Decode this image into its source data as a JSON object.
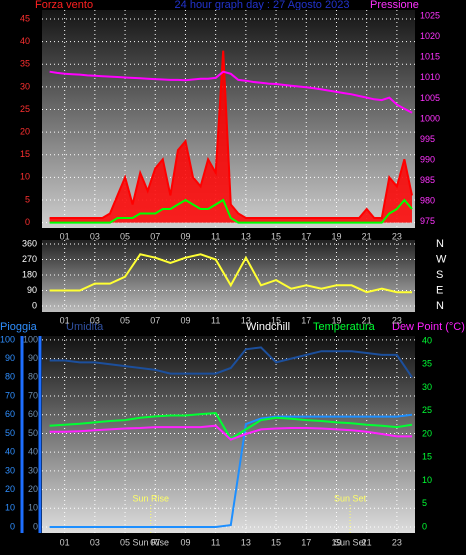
{
  "chart_data": [
    {
      "type": "line",
      "title": "24 hour graph day : 27 Agosto 2023",
      "y_label": "Forza vento",
      "y2_label": "Pressione",
      "x": [
        0,
        0.5,
        1,
        1.5,
        2,
        2.5,
        3,
        3.5,
        4,
        4.5,
        5,
        5.5,
        6,
        6.5,
        7,
        7.5,
        8,
        8.5,
        9,
        9.5,
        10,
        10.5,
        11,
        11.5,
        12,
        12.5,
        13,
        13.5,
        14,
        14.5,
        15,
        15.5,
        16,
        16.5,
        17,
        17.5,
        18,
        18.5,
        19,
        19.5,
        20,
        20.5,
        21,
        21.5,
        22,
        22.5,
        23,
        23.5,
        24
      ],
      "xlim": [
        -0.5,
        24.2
      ],
      "xticks": [
        {
          "value": 1,
          "label": "01"
        },
        {
          "value": 3,
          "label": "03"
        },
        {
          "value": 5,
          "label": "05"
        },
        {
          "value": 7,
          "label": "07"
        },
        {
          "value": 9,
          "label": "09"
        },
        {
          "value": 11,
          "label": "11"
        },
        {
          "value": 13,
          "label": "13"
        },
        {
          "value": 15,
          "label": "15"
        },
        {
          "value": 17,
          "label": "17"
        },
        {
          "value": 19,
          "label": "19"
        },
        {
          "value": 21,
          "label": "21"
        },
        {
          "value": 23,
          "label": "23"
        }
      ],
      "ylim": [
        -1.2,
        47
      ],
      "yticks": [
        0,
        5,
        10,
        15,
        20,
        25,
        30,
        35,
        40,
        45
      ],
      "y2lim": [
        973.5,
        1026.5
      ],
      "y2ticks": [
        975,
        980,
        985,
        990,
        995,
        1000,
        1005,
        1010,
        1015,
        1020,
        1025
      ],
      "grid": true,
      "series": [
        {
          "color": "#ff0000",
          "area": true,
          "values": [
            1,
            1,
            1,
            1,
            1,
            1,
            1,
            1,
            2,
            6,
            10,
            4,
            11,
            7,
            12,
            14,
            6,
            16,
            18,
            10,
            8,
            14,
            11,
            38,
            4,
            2,
            1,
            1,
            1,
            1,
            1,
            1,
            1,
            1,
            1,
            1,
            1,
            1,
            1,
            1,
            1,
            1,
            3,
            1,
            1,
            10,
            8,
            14,
            6
          ]
        },
        {
          "color": "#00ff00",
          "values": [
            0,
            0,
            0,
            0,
            0,
            0,
            0,
            0,
            0,
            1,
            1,
            1,
            2,
            2,
            2,
            3,
            3,
            4,
            5,
            4,
            3,
            3,
            4,
            5,
            1,
            0,
            0,
            0,
            0,
            0,
            0,
            0,
            0,
            0,
            0,
            0,
            0,
            0,
            0,
            0,
            0,
            0,
            0,
            0,
            0,
            2,
            3,
            5,
            3
          ]
        },
        {
          "color": "#ff00ff",
          "axis": "y2",
          "values": [
            1011.5,
            1011.2,
            1011,
            1010.9,
            1010.8,
            1010.6,
            1010.5,
            1010.4,
            1010.3,
            1010.2,
            1010.1,
            1010,
            1009.9,
            1009.8,
            1009.7,
            1009.6,
            1009.5,
            1009.5,
            1009.4,
            1009.6,
            1009.8,
            1009.8,
            1010,
            1011.5,
            1011,
            1009.5,
            1009.3,
            1009,
            1008.8,
            1008.6,
            1008.5,
            1008.3,
            1008.1,
            1007.9,
            1007.7,
            1007.5,
            1007.2,
            1006.9,
            1006.6,
            1006.3,
            1006,
            1005.6,
            1005.2,
            1004.8,
            1004.6,
            1005.2,
            1003.5,
            1002.5,
            1001.5
          ]
        }
      ]
    },
    {
      "type": "line",
      "x": [
        0,
        1,
        2,
        3,
        4,
        5,
        6,
        7,
        8,
        9,
        10,
        11,
        12,
        13,
        14,
        15,
        16,
        17,
        18,
        19,
        20,
        21,
        22,
        23,
        24
      ],
      "xlim": [
        -0.5,
        24.2
      ],
      "xticks": [
        {
          "value": 1,
          "label": "01"
        },
        {
          "value": 3,
          "label": "03"
        },
        {
          "value": 5,
          "label": "05"
        },
        {
          "value": 7,
          "label": "07"
        },
        {
          "value": 9,
          "label": "09"
        },
        {
          "value": 11,
          "label": "11"
        },
        {
          "value": 13,
          "label": "13"
        },
        {
          "value": 15,
          "label": "15"
        },
        {
          "value": 17,
          "label": "17"
        },
        {
          "value": 19,
          "label": "19"
        },
        {
          "value": 21,
          "label": "21"
        },
        {
          "value": 23,
          "label": "23"
        }
      ],
      "ylim": [
        -35,
        383
      ],
      "yticks": [
        0,
        90,
        180,
        270,
        360
      ],
      "y2lim": [
        -35,
        383
      ],
      "y2ticks": [
        {
          "value": 360,
          "label": "N"
        },
        {
          "value": 270,
          "label": "W"
        },
        {
          "value": 180,
          "label": "S"
        },
        {
          "value": 90,
          "label": "E"
        },
        {
          "value": 0,
          "label": "N"
        }
      ],
      "grid": true,
      "series": [
        {
          "color": "#ffff33",
          "values": [
            90,
            90,
            90,
            130,
            130,
            170,
            300,
            280,
            250,
            280,
            300,
            270,
            120,
            280,
            120,
            150,
            100,
            120,
            100,
            120,
            120,
            80,
            100,
            80,
            80
          ]
        }
      ]
    },
    {
      "type": "line",
      "windchill_label": "Windchill",
      "x": [
        0,
        1,
        2,
        3,
        4,
        5,
        6,
        7,
        8,
        9,
        10,
        11,
        12,
        13,
        14,
        15,
        16,
        17,
        18,
        19,
        20,
        21,
        22,
        23,
        24
      ],
      "xlim": [
        -0.5,
        24.2
      ],
      "xticks": [
        {
          "value": 1,
          "label": "01"
        },
        {
          "value": 3,
          "label": "03"
        },
        {
          "value": 5,
          "label": "05"
        },
        {
          "value": 7,
          "label": "07"
        },
        {
          "value": 9,
          "label": "09"
        },
        {
          "value": 11,
          "label": "11"
        },
        {
          "value": 13,
          "label": "13"
        },
        {
          "value": 15,
          "label": "15"
        },
        {
          "value": 17,
          "label": "17"
        },
        {
          "value": 19,
          "label": "19"
        },
        {
          "value": 21,
          "label": "21"
        },
        {
          "value": 23,
          "label": "23"
        }
      ],
      "ylim": [
        -3.2,
        102.1
      ],
      "yticks": [
        0,
        10,
        20,
        30,
        40,
        50,
        60,
        70,
        80,
        90,
        100
      ],
      "y2lim": [
        -1.3,
        41.1
      ],
      "y2ticks": [
        0,
        5,
        10,
        15,
        20,
        25,
        30,
        35,
        40
      ],
      "grid": true,
      "annotations": [
        {
          "text": "Sun Rise",
          "x": 6.7
        },
        {
          "text": "Sun Set",
          "x": 19.9
        }
      ],
      "series": [
        {
          "name": "Pioggia",
          "color": "#1e8fff",
          "values": [
            0,
            0,
            0,
            0,
            0,
            0,
            0,
            0,
            0,
            0,
            0,
            0,
            1,
            55,
            58,
            59,
            59,
            59,
            59,
            59,
            59,
            59,
            59,
            59,
            60
          ]
        },
        {
          "name": "Umidita",
          "color": "#1c4f9c",
          "values": [
            89,
            89,
            88,
            88,
            87,
            86,
            85,
            84,
            82,
            82,
            82,
            82,
            85,
            95,
            96,
            88,
            90,
            92,
            94,
            94,
            94,
            93,
            92,
            92,
            80
          ]
        },
        {
          "name": "Temperatura",
          "color": "#00ff33",
          "axis": "y2",
          "values": [
            21.8,
            22,
            22.2,
            22.5,
            22.8,
            23,
            23.5,
            23.8,
            24,
            24,
            24.3,
            24.5,
            19,
            21,
            23,
            23.5,
            23.3,
            23,
            22.8,
            22.5,
            22.3,
            22,
            21.8,
            21.5,
            22
          ]
        },
        {
          "name": "Dew Point (°C)",
          "color": "#ff22ff",
          "axis": "y2",
          "values": [
            20.5,
            20.5,
            20.6,
            20.8,
            21,
            21.2,
            21.3,
            21.5,
            21.5,
            21.5,
            21.5,
            21.8,
            18.8,
            20,
            21,
            21.2,
            21.3,
            21.3,
            21.2,
            21,
            20.8,
            20.5,
            20,
            19.5,
            19.5
          ]
        }
      ]
    }
  ]
}
